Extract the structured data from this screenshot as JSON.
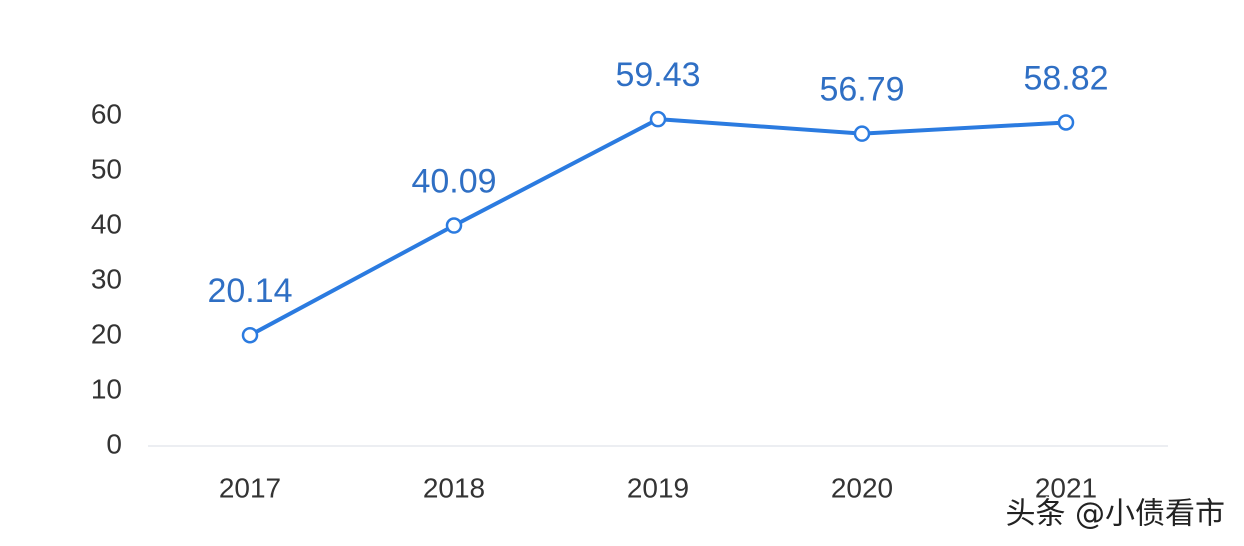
{
  "chart_data": {
    "type": "line",
    "categories": [
      "2017",
      "2018",
      "2019",
      "2020",
      "2021"
    ],
    "series": [
      {
        "color": "#2b7be0",
        "values": [
          20.14,
          40.09,
          59.43,
          56.79,
          58.82
        ]
      }
    ],
    "ylim": [
      0,
      60
    ],
    "yticks": [
      0,
      10,
      20,
      30,
      40,
      50,
      60
    ],
    "grid": false,
    "watermark": "头条 @小债看市"
  }
}
